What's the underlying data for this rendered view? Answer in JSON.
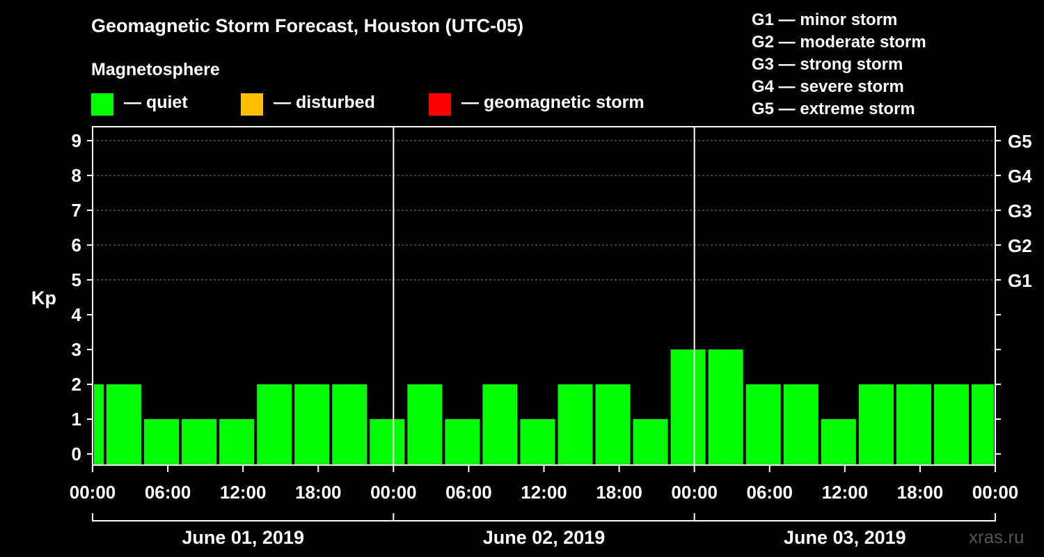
{
  "title": "Geomagnetic Storm Forecast, Houston (UTC-05)",
  "legend": {
    "heading": "Magnetosphere",
    "items": [
      {
        "label": "— quiet",
        "color": "#00ff00"
      },
      {
        "label": "— disturbed",
        "color": "#ffbf00"
      },
      {
        "label": "— geomagnetic storm",
        "color": "#ff0000"
      }
    ]
  },
  "g_scale": [
    "G1 — minor storm",
    "G2 — moderate storm",
    "G3 — strong storm",
    "G4 — severe storm",
    "G5 — extreme storm"
  ],
  "watermark": "xras.ru",
  "chart_data": {
    "type": "bar",
    "ylabel": "Kp",
    "ylim": [
      0,
      9
    ],
    "y_ticks": [
      "0",
      "1",
      "2",
      "3",
      "4",
      "5",
      "6",
      "7",
      "8",
      "9"
    ],
    "right_axis_labels": [
      {
        "kp": 5,
        "label": "G1"
      },
      {
        "kp": 6,
        "label": "G2"
      },
      {
        "kp": 7,
        "label": "G3"
      },
      {
        "kp": 8,
        "label": "G4"
      },
      {
        "kp": 9,
        "label": "G5"
      }
    ],
    "x_tick_labels": [
      "00:00",
      "06:00",
      "12:00",
      "18:00",
      "00:00",
      "06:00",
      "12:00",
      "18:00",
      "00:00",
      "06:00",
      "12:00",
      "18:00",
      "00:00"
    ],
    "days": [
      "June 01, 2019",
      "June 02, 2019",
      "June 03, 2019"
    ],
    "grid": "dashed horizontal at Kp 5–9",
    "series": [
      {
        "values": [
          {
            "start": "2019-06-01 00:00",
            "end": "2019-06-01 01:00",
            "kp": 2
          },
          {
            "start": "2019-06-01 01:00",
            "end": "2019-06-01 04:00",
            "kp": 2
          },
          {
            "start": "2019-06-01 04:00",
            "end": "2019-06-01 07:00",
            "kp": 1
          },
          {
            "start": "2019-06-01 07:00",
            "end": "2019-06-01 10:00",
            "kp": 1
          },
          {
            "start": "2019-06-01 10:00",
            "end": "2019-06-01 13:00",
            "kp": 1
          },
          {
            "start": "2019-06-01 13:00",
            "end": "2019-06-01 16:00",
            "kp": 2
          },
          {
            "start": "2019-06-01 16:00",
            "end": "2019-06-01 19:00",
            "kp": 2
          },
          {
            "start": "2019-06-01 19:00",
            "end": "2019-06-01 22:00",
            "kp": 2
          },
          {
            "start": "2019-06-01 22:00",
            "end": "2019-06-02 01:00",
            "kp": 1
          },
          {
            "start": "2019-06-02 01:00",
            "end": "2019-06-02 04:00",
            "kp": 2
          },
          {
            "start": "2019-06-02 04:00",
            "end": "2019-06-02 07:00",
            "kp": 1
          },
          {
            "start": "2019-06-02 07:00",
            "end": "2019-06-02 10:00",
            "kp": 2
          },
          {
            "start": "2019-06-02 10:00",
            "end": "2019-06-02 13:00",
            "kp": 1
          },
          {
            "start": "2019-06-02 13:00",
            "end": "2019-06-02 16:00",
            "kp": 2
          },
          {
            "start": "2019-06-02 16:00",
            "end": "2019-06-02 19:00",
            "kp": 2
          },
          {
            "start": "2019-06-02 19:00",
            "end": "2019-06-02 22:00",
            "kp": 1
          },
          {
            "start": "2019-06-02 22:00",
            "end": "2019-06-03 01:00",
            "kp": 3
          },
          {
            "start": "2019-06-03 01:00",
            "end": "2019-06-03 04:00",
            "kp": 3
          },
          {
            "start": "2019-06-03 04:00",
            "end": "2019-06-03 07:00",
            "kp": 2
          },
          {
            "start": "2019-06-03 07:00",
            "end": "2019-06-03 10:00",
            "kp": 2
          },
          {
            "start": "2019-06-03 10:00",
            "end": "2019-06-03 13:00",
            "kp": 1
          },
          {
            "start": "2019-06-03 13:00",
            "end": "2019-06-03 16:00",
            "kp": 2
          },
          {
            "start": "2019-06-03 16:00",
            "end": "2019-06-03 19:00",
            "kp": 2
          },
          {
            "start": "2019-06-03 19:00",
            "end": "2019-06-03 22:00",
            "kp": 2
          },
          {
            "start": "2019-06-03 22:00",
            "end": "2019-06-04 00:00",
            "kp": 2
          }
        ]
      }
    ]
  }
}
